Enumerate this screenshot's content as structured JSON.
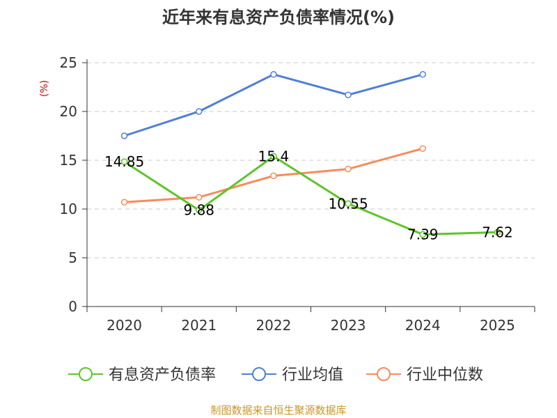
{
  "chart_data": {
    "type": "line",
    "title": "近年来有息资产负债率情况(%)",
    "ylabel": "(%)",
    "categories": [
      "2020",
      "2021",
      "2022",
      "2023",
      "2024",
      "2025"
    ],
    "ylim": [
      0,
      25
    ],
    "yticks": [
      0,
      5,
      10,
      15,
      20,
      25
    ],
    "grid": true,
    "legend_position": "bottom",
    "series": [
      {
        "name": "有息资产负债率",
        "color": "#5ec42a",
        "show_labels": true,
        "values": [
          14.85,
          9.88,
          15.4,
          10.55,
          7.39,
          7.62
        ]
      },
      {
        "name": "行业均值",
        "color": "#4f7fd6",
        "show_labels": false,
        "values": [
          17.5,
          20.0,
          23.8,
          21.7,
          23.8,
          null
        ]
      },
      {
        "name": "行业中位数",
        "color": "#f58c5a",
        "show_labels": false,
        "values": [
          10.7,
          11.2,
          13.4,
          14.1,
          16.2,
          null
        ]
      }
    ],
    "source": "制图数据来自恒生聚源数据库"
  }
}
